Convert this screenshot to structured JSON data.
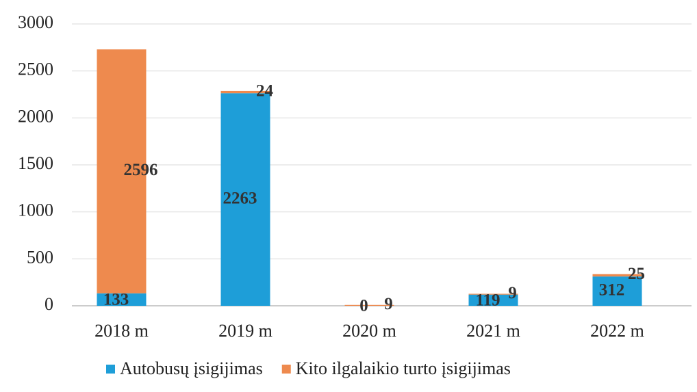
{
  "chart_data": {
    "type": "stacked_bar",
    "categories": [
      "2018 m",
      "2019 m",
      "2020 m",
      "2021 m",
      "2022 m"
    ],
    "series": [
      {
        "name": "Autobusų įsigijimas",
        "color": "#1e9ed8",
        "values": [
          133,
          2263,
          0,
          119,
          312
        ]
      },
      {
        "name": "Kito ilgalaikio turto įsigijimas",
        "color": "#ee8a4e",
        "values": [
          2596,
          24,
          9,
          9,
          25
        ]
      }
    ],
    "ylim": [
      0,
      3000
    ],
    "yticks": [
      0,
      500,
      1000,
      1500,
      2000,
      2500,
      3000
    ],
    "grid": true,
    "legend": "bottom"
  }
}
